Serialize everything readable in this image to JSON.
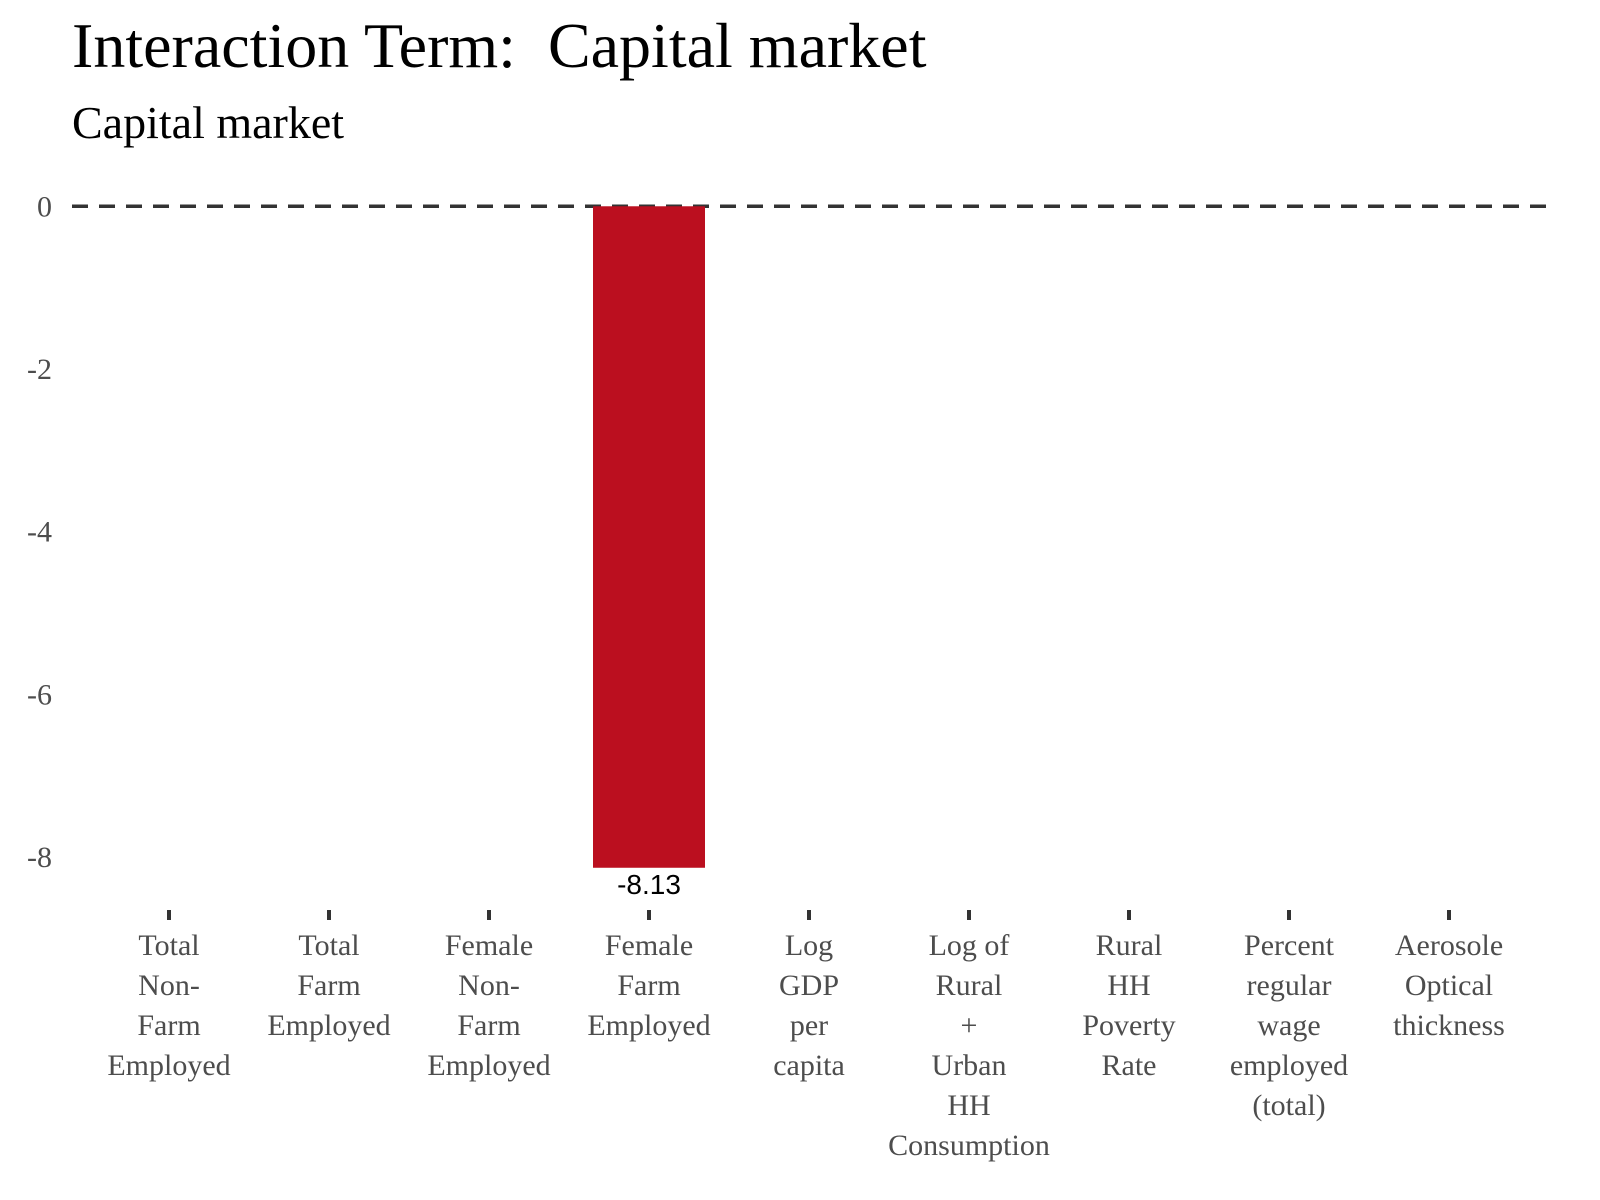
{
  "chart_data": {
    "type": "bar",
    "title": "Interaction Term:  Capital market",
    "subtitle": "Capital market",
    "xlabel": "",
    "ylabel": "",
    "categories": [
      [
        "Total",
        "Non-",
        "Farm",
        "Employed"
      ],
      [
        "Total",
        "Farm",
        "Employed"
      ],
      [
        "Female",
        "Non-",
        "Farm",
        "Employed"
      ],
      [
        "Female",
        "Farm",
        "Employed"
      ],
      [
        "Log",
        "GDP",
        "per",
        "capita"
      ],
      [
        "Log of",
        "Rural",
        "+",
        "Urban",
        "HH",
        "Consumption"
      ],
      [
        "Rural",
        "HH",
        "Poverty",
        "Rate"
      ],
      [
        "Percent",
        "regular",
        "wage",
        "employed",
        "(total)"
      ],
      [
        "Aerosole",
        "Optical",
        "thickness"
      ]
    ],
    "values": [
      null,
      null,
      null,
      -8.13,
      null,
      null,
      null,
      null,
      null
    ],
    "data_labels": [
      "",
      "",
      "",
      "-8.13",
      "",
      "",
      "",
      "",
      ""
    ],
    "ylim": [
      -8.6,
      0.2
    ],
    "yticks": [
      0,
      -2,
      -4,
      -6,
      -8
    ],
    "reference_line": 0,
    "grid": false,
    "colors": {
      "bar": "#bb0f1f",
      "reference_line": "#333333",
      "tick": "#333333"
    }
  }
}
